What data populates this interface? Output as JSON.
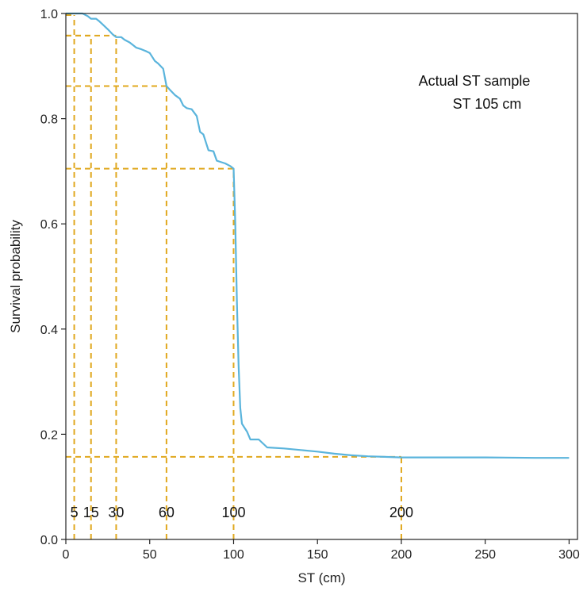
{
  "chart_data": {
    "type": "line",
    "title": "",
    "xlabel": "ST (cm)",
    "ylabel": "Survival probability",
    "xlim": [
      0,
      305
    ],
    "ylim": [
      0,
      1.0
    ],
    "xticks": [
      0,
      50,
      100,
      150,
      200,
      250,
      300
    ],
    "yticks": [
      0.0,
      0.2,
      0.4,
      0.6,
      0.8,
      1.0
    ],
    "xtick_labels": [
      "0",
      "50",
      "100",
      "150",
      "200",
      "250",
      "300"
    ],
    "ytick_labels": [
      "0.0",
      "0.2",
      "0.4",
      "0.6",
      "0.8",
      "1.0"
    ],
    "grid": false,
    "annotation_lines": [
      "Actual ST sample",
      "ST 105 cm"
    ],
    "series": [
      {
        "color": "#5AB4DC",
        "x": [
          0,
          4,
          5,
          10,
          13,
          15,
          18,
          20,
          25,
          28,
          30,
          33,
          35,
          38,
          40,
          42,
          45,
          48,
          50,
          53,
          55,
          58,
          60,
          62,
          65,
          68,
          70,
          72,
          75,
          78,
          80,
          82,
          85,
          88,
          90,
          92,
          95,
          98,
          100,
          101,
          102,
          103,
          104,
          105,
          108,
          110,
          115,
          120,
          130,
          140,
          150,
          160,
          170,
          180,
          190,
          200,
          220,
          250,
          280,
          300
        ],
        "y": [
          1.0,
          1.0,
          1.0,
          1.0,
          0.995,
          0.99,
          0.99,
          0.985,
          0.97,
          0.96,
          0.955,
          0.955,
          0.95,
          0.945,
          0.94,
          0.935,
          0.932,
          0.928,
          0.925,
          0.91,
          0.905,
          0.895,
          0.862,
          0.855,
          0.845,
          0.838,
          0.825,
          0.82,
          0.818,
          0.805,
          0.775,
          0.77,
          0.74,
          0.738,
          0.72,
          0.718,
          0.715,
          0.71,
          0.705,
          0.6,
          0.45,
          0.33,
          0.25,
          0.22,
          0.205,
          0.19,
          0.19,
          0.175,
          0.173,
          0.17,
          0.167,
          0.163,
          0.16,
          0.158,
          0.157,
          0.156,
          0.156,
          0.156,
          0.155,
          0.155
        ]
      }
    ],
    "reference_points": [
      {
        "x": 5,
        "y": 0.997,
        "label": "5"
      },
      {
        "x": 15,
        "y": 0.958,
        "label": "15"
      },
      {
        "x": 30,
        "y": 0.958,
        "label": "30"
      },
      {
        "x": 60,
        "y": 0.862,
        "label": "60"
      },
      {
        "x": 100,
        "y": 0.705,
        "label": "100"
      },
      {
        "x": 200,
        "y": 0.157,
        "label": "200"
      }
    ],
    "reference_color": "#E0A81E"
  }
}
